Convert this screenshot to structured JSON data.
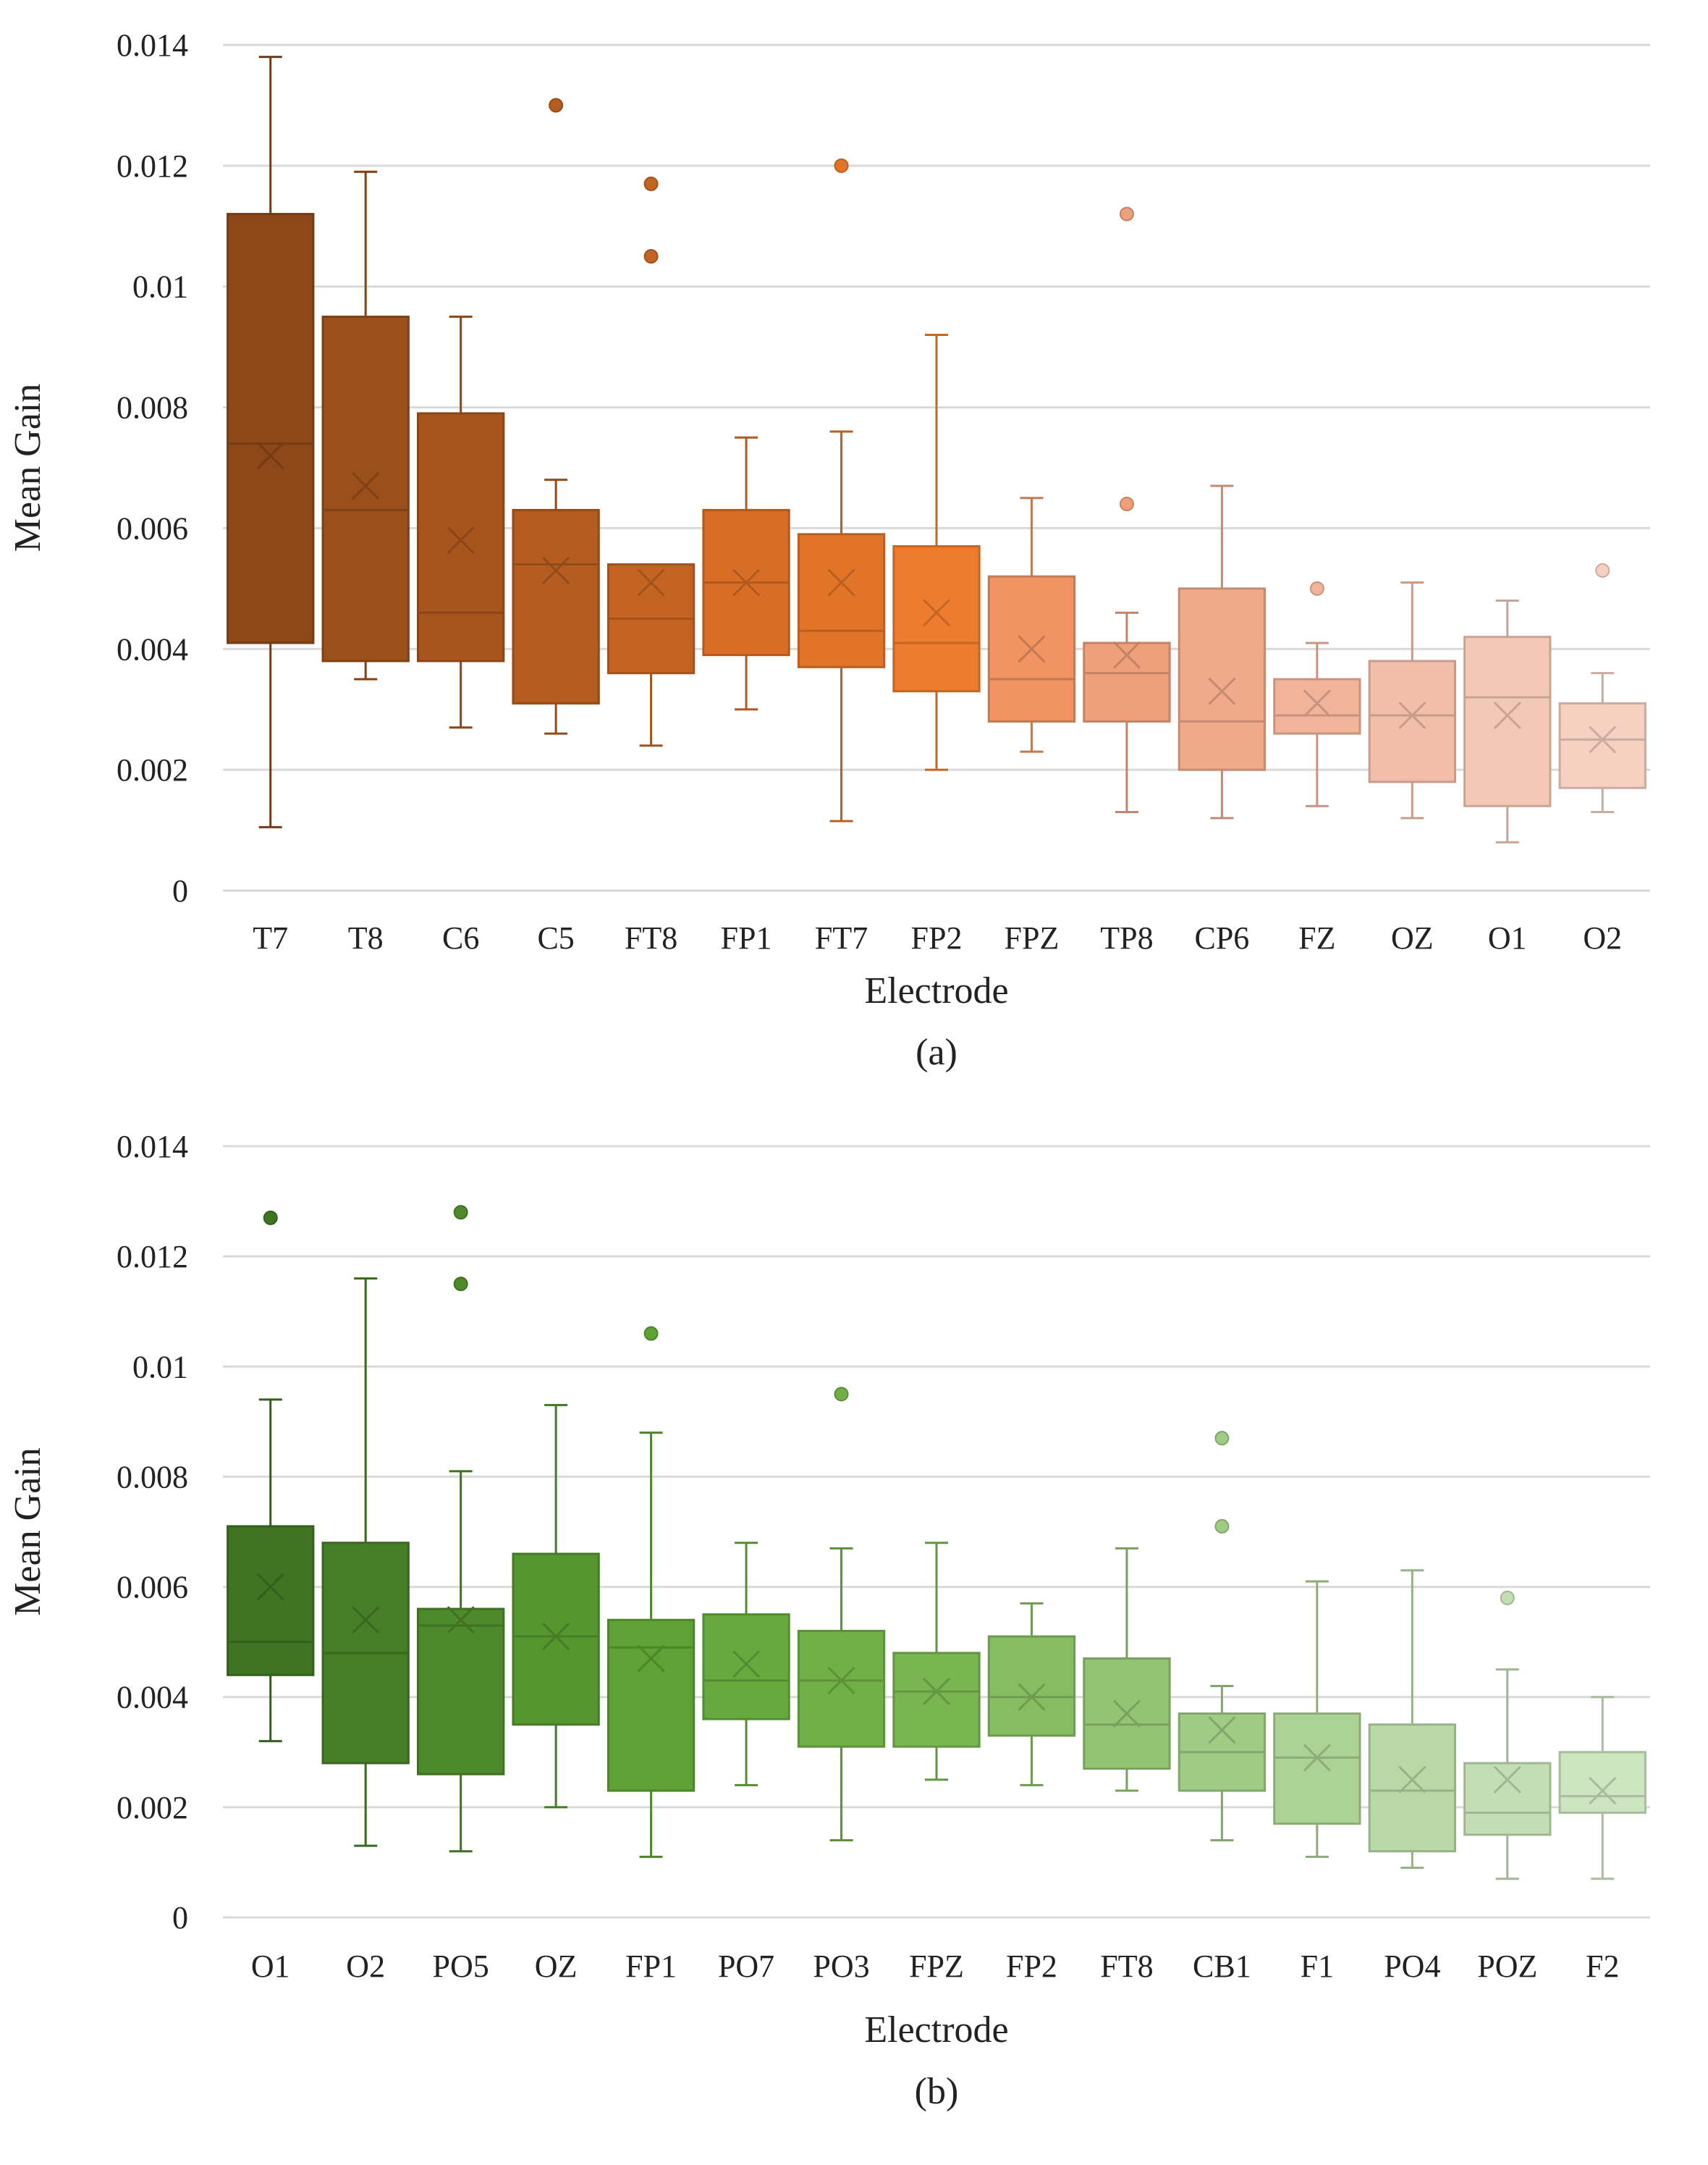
{
  "chart_data": [
    {
      "type": "boxplot",
      "panel_label": "(a)",
      "xlabel": "Electrode",
      "ylabel": "Mean Gain",
      "ylim": [
        0,
        0.014
      ],
      "yticks": [
        {
          "value": 0,
          "label": "0"
        },
        {
          "value": 0.002,
          "label": "0.002"
        },
        {
          "value": 0.004,
          "label": "0.004"
        },
        {
          "value": 0.006,
          "label": "0.006"
        },
        {
          "value": 0.008,
          "label": "0.008"
        },
        {
          "value": 0.01,
          "label": "0.01"
        },
        {
          "value": 0.012,
          "label": "0.012"
        },
        {
          "value": 0.014,
          "label": "0.014"
        }
      ],
      "grid": true,
      "series": [
        {
          "label": "T7",
          "color": "#8e4718",
          "min": 0.00105,
          "q1": 0.0041,
          "median": 0.0074,
          "q3": 0.0112,
          "max": 0.0138,
          "mean": 0.0072,
          "outliers": []
        },
        {
          "label": "T8",
          "color": "#9b4f1b",
          "min": 0.0035,
          "q1": 0.0038,
          "median": 0.0063,
          "q3": 0.0095,
          "max": 0.0119,
          "mean": 0.0067,
          "outliers": []
        },
        {
          "label": "C6",
          "color": "#a8551d",
          "min": 0.0027,
          "q1": 0.0038,
          "median": 0.0046,
          "q3": 0.0079,
          "max": 0.0095,
          "mean": 0.0058,
          "outliers": []
        },
        {
          "label": "C5",
          "color": "#b55c20",
          "min": 0.0026,
          "q1": 0.0031,
          "median": 0.0054,
          "q3": 0.0063,
          "max": 0.0068,
          "mean": 0.0053,
          "outliers": [
            0.013
          ]
        },
        {
          "label": "FT8",
          "color": "#c46423",
          "min": 0.0024,
          "q1": 0.0036,
          "median": 0.0045,
          "q3": 0.0054,
          "max": 0.0054,
          "mean": 0.0051,
          "outliers": [
            0.0117,
            0.0105
          ]
        },
        {
          "label": "FP1",
          "color": "#d86e26",
          "min": 0.003,
          "q1": 0.0039,
          "median": 0.0051,
          "q3": 0.0063,
          "max": 0.0075,
          "mean": 0.0051,
          "outliers": []
        },
        {
          "label": "FT7",
          "color": "#e27428",
          "min": 0.00115,
          "q1": 0.0037,
          "median": 0.0043,
          "q3": 0.0059,
          "max": 0.0076,
          "mean": 0.0051,
          "outliers": [
            0.012
          ]
        },
        {
          "label": "FP2",
          "color": "#ee7c2e",
          "min": 0.002,
          "q1": 0.0033,
          "median": 0.0041,
          "q3": 0.0057,
          "max": 0.0092,
          "mean": 0.0046,
          "outliers": []
        },
        {
          "label": "FPZ",
          "color": "#ef9462",
          "min": 0.0023,
          "q1": 0.0028,
          "median": 0.0035,
          "q3": 0.0052,
          "max": 0.0065,
          "mean": 0.004,
          "outliers": []
        },
        {
          "label": "TP8",
          "color": "#efa07a",
          "min": 0.0013,
          "q1": 0.0028,
          "median": 0.0036,
          "q3": 0.0041,
          "max": 0.0046,
          "mean": 0.0039,
          "outliers": [
            0.0112,
            0.0064
          ]
        },
        {
          "label": "CP6",
          "color": "#f0a98a",
          "min": 0.0012,
          "q1": 0.002,
          "median": 0.0028,
          "q3": 0.005,
          "max": 0.0067,
          "mean": 0.0033,
          "outliers": []
        },
        {
          "label": "FZ",
          "color": "#f1b49b",
          "min": 0.0014,
          "q1": 0.0026,
          "median": 0.0029,
          "q3": 0.0035,
          "max": 0.0041,
          "mean": 0.0031,
          "outliers": [
            0.005
          ]
        },
        {
          "label": "OZ",
          "color": "#f3bea9",
          "min": 0.0012,
          "q1": 0.0018,
          "median": 0.0029,
          "q3": 0.0038,
          "max": 0.0051,
          "mean": 0.0029,
          "outliers": []
        },
        {
          "label": "O1",
          "color": "#f4c8b6",
          "min": 0.0008,
          "q1": 0.0014,
          "median": 0.0032,
          "q3": 0.0042,
          "max": 0.0048,
          "mean": 0.0029,
          "outliers": []
        },
        {
          "label": "O2",
          "color": "#f6d1c2",
          "min": 0.0013,
          "q1": 0.0017,
          "median": 0.0025,
          "q3": 0.0031,
          "max": 0.0036,
          "mean": 0.0025,
          "outliers": [
            0.0053
          ]
        }
      ]
    },
    {
      "type": "boxplot",
      "panel_label": "(b)",
      "xlabel": "Electrode",
      "ylabel": "Mean Gain",
      "ylim": [
        0,
        0.014
      ],
      "yticks": [
        {
          "value": 0,
          "label": "0"
        },
        {
          "value": 0.002,
          "label": "0.002"
        },
        {
          "value": 0.004,
          "label": "0.004"
        },
        {
          "value": 0.006,
          "label": "0.006"
        },
        {
          "value": 0.008,
          "label": "0.008"
        },
        {
          "value": 0.01,
          "label": "0.01"
        },
        {
          "value": 0.012,
          "label": "0.012"
        },
        {
          "value": 0.014,
          "label": "0.014"
        }
      ],
      "grid": true,
      "series": [
        {
          "label": "O1",
          "color": "#3f7423",
          "min": 0.0032,
          "q1": 0.0044,
          "median": 0.005,
          "q3": 0.0071,
          "max": 0.0094,
          "mean": 0.006,
          "outliers": [
            0.0127
          ]
        },
        {
          "label": "O2",
          "color": "#467e27",
          "min": 0.0013,
          "q1": 0.0028,
          "median": 0.0048,
          "q3": 0.0068,
          "max": 0.0116,
          "mean": 0.0054,
          "outliers": []
        },
        {
          "label": "PO5",
          "color": "#4e8a2b",
          "min": 0.0012,
          "q1": 0.0026,
          "median": 0.0053,
          "q3": 0.0056,
          "max": 0.0081,
          "mean": 0.0054,
          "outliers": [
            0.0128,
            0.0115
          ]
        },
        {
          "label": "OZ",
          "color": "#55962f",
          "min": 0.002,
          "q1": 0.0035,
          "median": 0.0051,
          "q3": 0.0066,
          "max": 0.0093,
          "mean": 0.0051,
          "outliers": []
        },
        {
          "label": "FP1",
          "color": "#5ea235",
          "min": 0.0011,
          "q1": 0.0023,
          "median": 0.0049,
          "q3": 0.0054,
          "max": 0.0088,
          "mean": 0.0047,
          "outliers": [
            0.0106
          ]
        },
        {
          "label": "PO7",
          "color": "#66aa3e",
          "min": 0.0024,
          "q1": 0.0036,
          "median": 0.0043,
          "q3": 0.0055,
          "max": 0.0068,
          "mean": 0.0046,
          "outliers": []
        },
        {
          "label": "PO3",
          "color": "#70b046",
          "min": 0.0014,
          "q1": 0.0031,
          "median": 0.0043,
          "q3": 0.0052,
          "max": 0.0067,
          "mean": 0.0043,
          "outliers": [
            0.0095
          ]
        },
        {
          "label": "FPZ",
          "color": "#79b652",
          "min": 0.0025,
          "q1": 0.0031,
          "median": 0.0041,
          "q3": 0.0048,
          "max": 0.0068,
          "mean": 0.0041,
          "outliers": []
        },
        {
          "label": "FP2",
          "color": "#86bd62",
          "min": 0.0024,
          "q1": 0.0033,
          "median": 0.004,
          "q3": 0.0051,
          "max": 0.0057,
          "mean": 0.004,
          "outliers": []
        },
        {
          "label": "FT8",
          "color": "#93c473",
          "min": 0.0023,
          "q1": 0.0027,
          "median": 0.0035,
          "q3": 0.0047,
          "max": 0.0067,
          "mean": 0.0037,
          "outliers": []
        },
        {
          "label": "CB1",
          "color": "#a0cb85",
          "min": 0.0014,
          "q1": 0.0023,
          "median": 0.003,
          "q3": 0.0037,
          "max": 0.0042,
          "mean": 0.0034,
          "outliers": [
            0.0087,
            0.0071
          ]
        },
        {
          "label": "F1",
          "color": "#acd295",
          "min": 0.0011,
          "q1": 0.0017,
          "median": 0.0029,
          "q3": 0.0037,
          "max": 0.0061,
          "mean": 0.0029,
          "outliers": []
        },
        {
          "label": "PO4",
          "color": "#b8d8a6",
          "min": 0.0009,
          "q1": 0.0012,
          "median": 0.0023,
          "q3": 0.0035,
          "max": 0.0063,
          "mean": 0.0025,
          "outliers": []
        },
        {
          "label": "POZ",
          "color": "#c3deb4",
          "min": 0.0007,
          "q1": 0.0015,
          "median": 0.0019,
          "q3": 0.0028,
          "max": 0.0045,
          "mean": 0.0025,
          "outliers": [
            0.0058
          ]
        },
        {
          "label": "F2",
          "color": "#cde5c1",
          "min": 0.0007,
          "q1": 0.0019,
          "median": 0.0022,
          "q3": 0.003,
          "max": 0.004,
          "mean": 0.0023,
          "outliers": []
        }
      ]
    }
  ]
}
